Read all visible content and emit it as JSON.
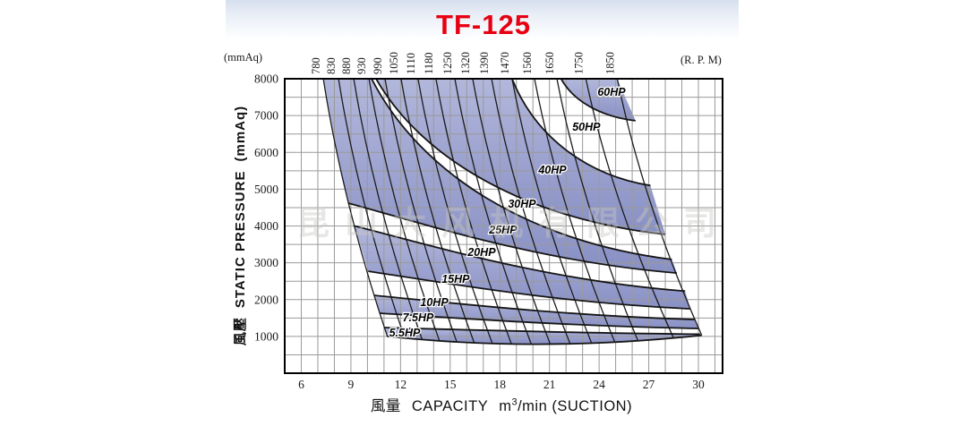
{
  "title": "TF-125",
  "corner_labels": {
    "left": "(mmAq)",
    "right": "(R. P. M)"
  },
  "y_axis": {
    "title_cjk": "風壓",
    "title_en": "STATIC  PRESSURE",
    "title_unit": "(mmAq)"
  },
  "x_axis": {
    "title_cjk": "風量",
    "title_en": "CAPACITY",
    "unit_base": "m",
    "unit_sup": "3",
    "unit_rest": "/min (SUCTION)"
  },
  "watermark": "昆山大风机有限公司",
  "chart_data": {
    "type": "line",
    "title": "TF-125",
    "xlabel": "風量 CAPACITY m3/min (SUCTION)",
    "ylabel": "風壓 STATIC PRESSURE (mmAq)",
    "x_range": [
      5,
      31.5
    ],
    "y_range": [
      0,
      8000
    ],
    "x_ticks": [
      6,
      9,
      12,
      15,
      18,
      21,
      24,
      27,
      30
    ],
    "y_ticks": [
      1000,
      2000,
      3000,
      4000,
      5000,
      6000,
      7000,
      8000
    ],
    "grid_step_x": 1,
    "grid_step_y": 500,
    "legend_position": "none",
    "grid": true,
    "rpm_lines": [
      {
        "rpm": 780,
        "q_top": 7.33,
        "q_end": 11.2
      },
      {
        "rpm": 830,
        "q_top": 8.25,
        "q_end": 12.25
      },
      {
        "rpm": 880,
        "q_top": 9.17,
        "q_end": 13.3
      },
      {
        "rpm": 930,
        "q_top": 10.09,
        "q_end": 14.35
      },
      {
        "rpm": 990,
        "q_top": 11.06,
        "q_end": 15.4
      },
      {
        "rpm": 1050,
        "q_top": 12.03,
        "q_end": 16.45
      },
      {
        "rpm": 1110,
        "q_top": 13.06,
        "q_end": 17.55
      },
      {
        "rpm": 1180,
        "q_top": 14.14,
        "q_end": 18.7
      },
      {
        "rpm": 1250,
        "q_top": 15.28,
        "q_end": 19.9
      },
      {
        "rpm": 1320,
        "q_top": 16.36,
        "q_end": 21.05
      },
      {
        "rpm": 1390,
        "q_top": 17.5,
        "q_end": 22.25
      },
      {
        "rpm": 1470,
        "q_top": 18.74,
        "q_end": 23.55
      },
      {
        "rpm": 1560,
        "q_top": 20.1,
        "q_end": 24.95
      },
      {
        "rpm": 1650,
        "q_top": 21.45,
        "q_end": 26.35
      },
      {
        "rpm": 1750,
        "q_top": 23.2,
        "q_end": 28.5
      },
      {
        "rpm": 1850,
        "q_top": 25.1,
        "q_end": 30.2
      }
    ],
    "hp_curves": [
      {
        "id": "K55",
        "hp": "5.5HP",
        "shape": "env",
        "start": [
          11.0,
          1240
        ],
        "end": [
          30.1,
          1060
        ]
      },
      {
        "id": "K75",
        "hp": "7.5HP",
        "shape": "env",
        "start": [
          10.76,
          1629
        ],
        "end": [
          30.0,
          1216
        ]
      },
      {
        "id": "K10",
        "hp": "10HP",
        "shape": "env",
        "start": [
          10.4,
          2115
        ],
        "end": [
          29.8,
          1460
        ]
      },
      {
        "id": "K15",
        "hp": "15HP",
        "shape": "env",
        "start": [
          10.05,
          2770
        ],
        "end": [
          29.5,
          1750
        ]
      },
      {
        "id": "K20",
        "hp": "20HP",
        "shape": "env",
        "start": [
          9.22,
          4000
        ],
        "end": [
          29.2,
          2230
        ]
      },
      {
        "id": "K25",
        "hp": "25HP",
        "shape": "env",
        "start": [
          8.85,
          4620
        ],
        "end": [
          28.7,
          2720
        ]
      },
      {
        "id": "K30",
        "hp": "30HP",
        "shape": "top",
        "start": [
          10.25,
          8000
        ],
        "end": [
          28.4,
          3090
        ]
      },
      {
        "id": "K40",
        "hp": "40HP",
        "shape": "top",
        "start": [
          10.52,
          8000
        ],
        "end": [
          28.0,
          3770
        ]
      },
      {
        "id": "K50",
        "hp": "50HP",
        "shape": "top",
        "start": [
          18.74,
          8000
        ],
        "end": [
          27.1,
          5100
        ]
      },
      {
        "id": "K60",
        "hp": "60HP",
        "shape": "top",
        "start": [
          21.7,
          8000
        ],
        "end": [
          26.2,
          6860
        ]
      },
      {
        "id": "R60",
        "hp": "",
        "shape": "line",
        "start": [
          25.1,
          8000
        ],
        "end": [
          26.2,
          6860
        ]
      },
      {
        "id": "F",
        "hp": "",
        "shape": "quad",
        "start": [
          11.2,
          1000
        ],
        "ctrl": [
          20.5,
          560
        ],
        "end": [
          30.2,
          1030
        ]
      }
    ],
    "shaded_bands": [
      {
        "lower": "K60",
        "upper": "R60",
        "corners": []
      },
      {
        "lower": "K40",
        "upper": "K50",
        "corners": []
      },
      {
        "lower": "K25",
        "upper": "K30",
        "corners": [
          [
            7.33,
            8000
          ],
          [
            8.17,
            5959
          ]
        ]
      },
      {
        "lower": "K15",
        "upper": "K20",
        "corners": []
      },
      {
        "lower": "K75",
        "upper": "K10",
        "corners": []
      },
      {
        "lower": "F",
        "upper": "K55",
        "corners": []
      }
    ],
    "hp_labels": [
      {
        "text": "60HP",
        "q": 24.75,
        "p": 7635
      },
      {
        "text": "50HP",
        "q": 23.23,
        "p": 6687
      },
      {
        "text": "40HP",
        "q": 21.18,
        "p": 5520
      },
      {
        "text": "30HP",
        "q": 19.34,
        "p": 4596
      },
      {
        "text": "25HP",
        "q": 18.2,
        "p": 3891
      },
      {
        "text": "20HP",
        "q": 16.9,
        "p": 3283
      },
      {
        "text": "15HP",
        "q": 15.33,
        "p": 2553
      },
      {
        "text": "10HP",
        "q": 14.04,
        "p": 1921
      },
      {
        "text": "7.5HP",
        "q": 13.06,
        "p": 1508
      },
      {
        "text": "5.5HP",
        "q": 12.25,
        "p": 1094
      }
    ],
    "colors": {
      "band_top": "#b2b7db",
      "band_bottom": "#8890c5",
      "curve": "#151515",
      "rpm_line": "#1c1c1c",
      "grid": "#9a9a9a",
      "border": "#000000",
      "title_red": "#e60012",
      "text": "#1a1a1a"
    }
  }
}
